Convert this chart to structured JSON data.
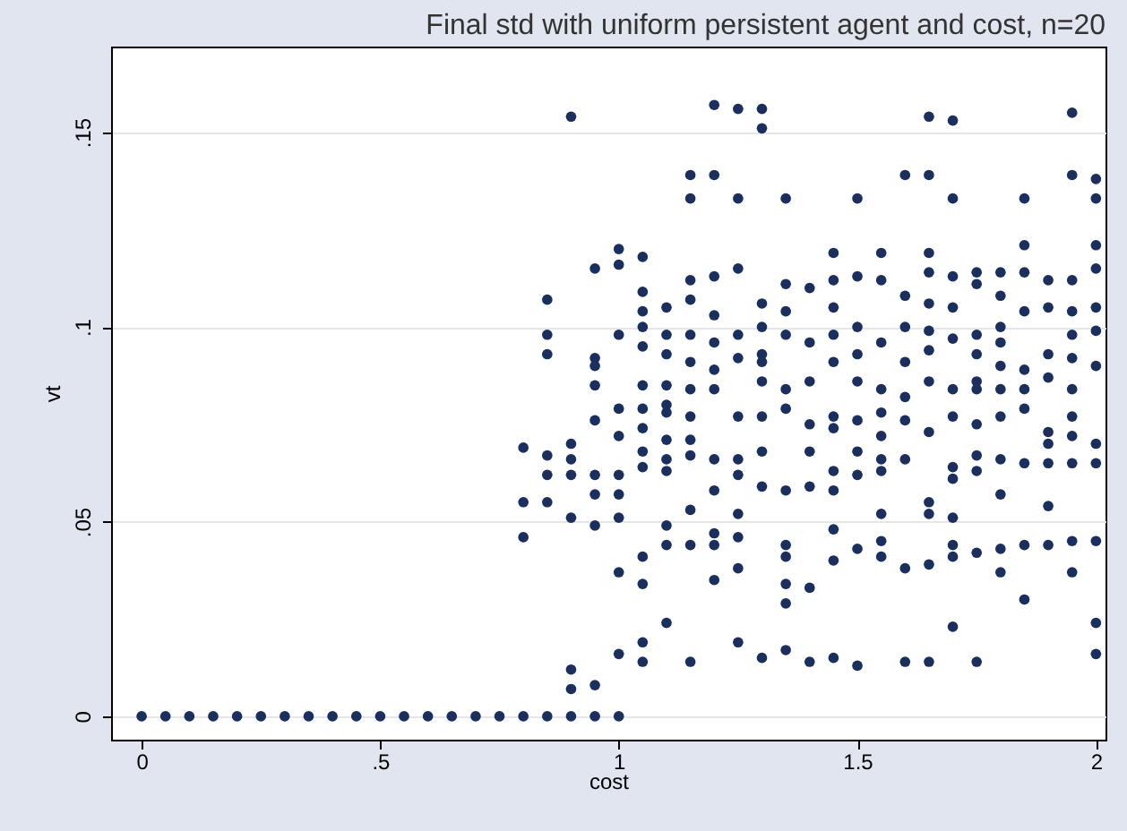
{
  "chart_data": {
    "type": "scatter",
    "title": "Final std with uniform persistent agent and cost, n=20",
    "xlabel": "cost",
    "ylabel": "vt",
    "xlim": [
      -0.064,
      2.02
    ],
    "ylim": [
      -0.006,
      0.172
    ],
    "xticks": [
      0,
      {
        "value": 0.5,
        "label": ".5"
      },
      1,
      {
        "value": 1.5,
        "label": "1.5"
      },
      2
    ],
    "yticks": [
      0,
      {
        "value": 0.05,
        "label": ".05"
      },
      {
        "value": 0.1,
        "label": ".1"
      },
      {
        "value": 0.15,
        "label": ".15"
      }
    ],
    "grid": "y",
    "marker": "circle",
    "series": [
      {
        "color": "#1a2f5e",
        "x": [
          0,
          0.05,
          0.1,
          0.15,
          0.2,
          0.25,
          0.3,
          0.35,
          0.4,
          0.45,
          0.5,
          0.55,
          0.6,
          0.65,
          0.7,
          0.75,
          0.8,
          0.85,
          0.9,
          0.95,
          1.0,
          0.8,
          0.8,
          0.8,
          0.85,
          0.85,
          0.85,
          0.85,
          0.85,
          0.85,
          0.9,
          0.9,
          0.9,
          0.9,
          0.9,
          0.9,
          0.9,
          0.95,
          0.95,
          0.95,
          0.95,
          0.95,
          0.95,
          0.95,
          0.95,
          0.95,
          1.0,
          1.0,
          1.0,
          1.0,
          1.0,
          1.0,
          1.0,
          1.0,
          1.0,
          1.0,
          1.05,
          1.05,
          1.05,
          1.05,
          1.05,
          1.05,
          1.05,
          1.05,
          1.05,
          1.05,
          1.05,
          1.05,
          1.05,
          1.05,
          1.1,
          1.1,
          1.1,
          1.1,
          1.1,
          1.1,
          1.1,
          1.1,
          1.1,
          1.1,
          1.1,
          1.1,
          1.15,
          1.15,
          1.15,
          1.15,
          1.15,
          1.15,
          1.15,
          1.15,
          1.15,
          1.15,
          1.15,
          1.15,
          1.15,
          1.2,
          1.2,
          1.2,
          1.2,
          1.2,
          1.2,
          1.2,
          1.2,
          1.2,
          1.2,
          1.2,
          1.2,
          1.25,
          1.25,
          1.25,
          1.25,
          1.25,
          1.25,
          1.25,
          1.25,
          1.25,
          1.25,
          1.25,
          1.25,
          1.3,
          1.3,
          1.3,
          1.3,
          1.3,
          1.3,
          1.3,
          1.3,
          1.3,
          1.3,
          1.3,
          1.35,
          1.35,
          1.35,
          1.35,
          1.35,
          1.35,
          1.35,
          1.35,
          1.35,
          1.35,
          1.35,
          1.35,
          1.4,
          1.4,
          1.4,
          1.4,
          1.4,
          1.4,
          1.4,
          1.4,
          1.45,
          1.45,
          1.45,
          1.45,
          1.45,
          1.45,
          1.45,
          1.45,
          1.45,
          1.45,
          1.45,
          1.45,
          1.5,
          1.5,
          1.5,
          1.5,
          1.5,
          1.5,
          1.5,
          1.5,
          1.5,
          1.5,
          1.55,
          1.55,
          1.55,
          1.55,
          1.55,
          1.55,
          1.55,
          1.55,
          1.55,
          1.55,
          1.55,
          1.6,
          1.6,
          1.6,
          1.6,
          1.6,
          1.6,
          1.6,
          1.6,
          1.6,
          1.65,
          1.65,
          1.65,
          1.65,
          1.65,
          1.65,
          1.65,
          1.65,
          1.65,
          1.65,
          1.65,
          1.65,
          1.65,
          1.7,
          1.7,
          1.7,
          1.7,
          1.7,
          1.7,
          1.7,
          1.7,
          1.7,
          1.7,
          1.7,
          1.7,
          1.7,
          1.75,
          1.75,
          1.75,
          1.75,
          1.75,
          1.75,
          1.75,
          1.75,
          1.75,
          1.75,
          1.75,
          1.8,
          1.8,
          1.8,
          1.8,
          1.8,
          1.8,
          1.8,
          1.8,
          1.8,
          1.8,
          1.8,
          1.85,
          1.85,
          1.85,
          1.85,
          1.85,
          1.85,
          1.85,
          1.85,
          1.85,
          1.85,
          1.9,
          1.9,
          1.9,
          1.9,
          1.9,
          1.9,
          1.9,
          1.9,
          1.9,
          1.95,
          1.95,
          1.95,
          1.95,
          1.95,
          1.95,
          1.95,
          1.95,
          1.95,
          1.95,
          1.95,
          1.95,
          2.0,
          2.0,
          2.0,
          2.0,
          2.0,
          2.0,
          2.0,
          2.0,
          2.0,
          2.0,
          2.0,
          2.0
        ],
        "values": [
          0,
          0,
          0,
          0,
          0,
          0,
          0,
          0,
          0,
          0,
          0,
          0,
          0,
          0,
          0,
          0,
          0,
          0,
          0,
          0,
          0,
          0.069,
          0.055,
          0.046,
          0.107,
          0.098,
          0.093,
          0.067,
          0.062,
          0.055,
          0.154,
          0.07,
          0.066,
          0.062,
          0.051,
          0.012,
          0.007,
          0.115,
          0.092,
          0.09,
          0.085,
          0.076,
          0.062,
          0.057,
          0.049,
          0.008,
          0.12,
          0.116,
          0.098,
          0.079,
          0.072,
          0.062,
          0.057,
          0.051,
          0.037,
          0.016,
          0.118,
          0.109,
          0.104,
          0.1,
          0.095,
          0.085,
          0.079,
          0.074,
          0.068,
          0.064,
          0.041,
          0.034,
          0.019,
          0.014,
          0.105,
          0.098,
          0.093,
          0.085,
          0.08,
          0.078,
          0.071,
          0.066,
          0.063,
          0.049,
          0.044,
          0.024,
          0.139,
          0.133,
          0.112,
          0.107,
          0.098,
          0.091,
          0.084,
          0.077,
          0.071,
          0.067,
          0.053,
          0.044,
          0.014,
          0.157,
          0.139,
          0.113,
          0.103,
          0.096,
          0.089,
          0.084,
          0.066,
          0.058,
          0.047,
          0.044,
          0.035,
          0.156,
          0.133,
          0.115,
          0.098,
          0.092,
          0.077,
          0.066,
          0.062,
          0.052,
          0.046,
          0.038,
          0.019,
          0.156,
          0.151,
          0.106,
          0.1,
          0.093,
          0.091,
          0.086,
          0.077,
          0.068,
          0.059,
          0.015,
          0.133,
          0.111,
          0.104,
          0.098,
          0.084,
          0.079,
          0.058,
          0.044,
          0.041,
          0.034,
          0.029,
          0.017,
          0.11,
          0.096,
          0.086,
          0.075,
          0.068,
          0.059,
          0.033,
          0.014,
          0.119,
          0.112,
          0.105,
          0.098,
          0.091,
          0.077,
          0.074,
          0.063,
          0.058,
          0.048,
          0.04,
          0.015,
          0.133,
          0.113,
          0.1,
          0.093,
          0.086,
          0.076,
          0.068,
          0.062,
          0.043,
          0.013,
          0.119,
          0.112,
          0.096,
          0.084,
          0.078,
          0.072,
          0.066,
          0.063,
          0.052,
          0.045,
          0.041,
          0.139,
          0.108,
          0.1,
          0.091,
          0.082,
          0.076,
          0.066,
          0.038,
          0.014,
          0.154,
          0.139,
          0.119,
          0.114,
          0.106,
          0.099,
          0.094,
          0.086,
          0.073,
          0.055,
          0.052,
          0.039,
          0.014,
          0.153,
          0.133,
          0.113,
          0.105,
          0.097,
          0.084,
          0.077,
          0.064,
          0.061,
          0.051,
          0.044,
          0.041,
          0.023,
          0.114,
          0.111,
          0.098,
          0.093,
          0.086,
          0.084,
          0.075,
          0.067,
          0.063,
          0.042,
          0.014,
          0.114,
          0.108,
          0.1,
          0.096,
          0.09,
          0.084,
          0.077,
          0.066,
          0.057,
          0.043,
          0.037,
          0.133,
          0.121,
          0.114,
          0.104,
          0.089,
          0.084,
          0.079,
          0.065,
          0.044,
          0.03,
          0.112,
          0.105,
          0.093,
          0.087,
          0.073,
          0.07,
          0.065,
          0.054,
          0.044,
          0.155,
          0.139,
          0.112,
          0.104,
          0.098,
          0.092,
          0.084,
          0.077,
          0.072,
          0.065,
          0.045,
          0.037,
          0.138,
          0.133,
          0.121,
          0.115,
          0.105,
          0.099,
          0.09,
          0.07,
          0.065,
          0.045,
          0.024,
          0.016
        ]
      }
    ]
  }
}
